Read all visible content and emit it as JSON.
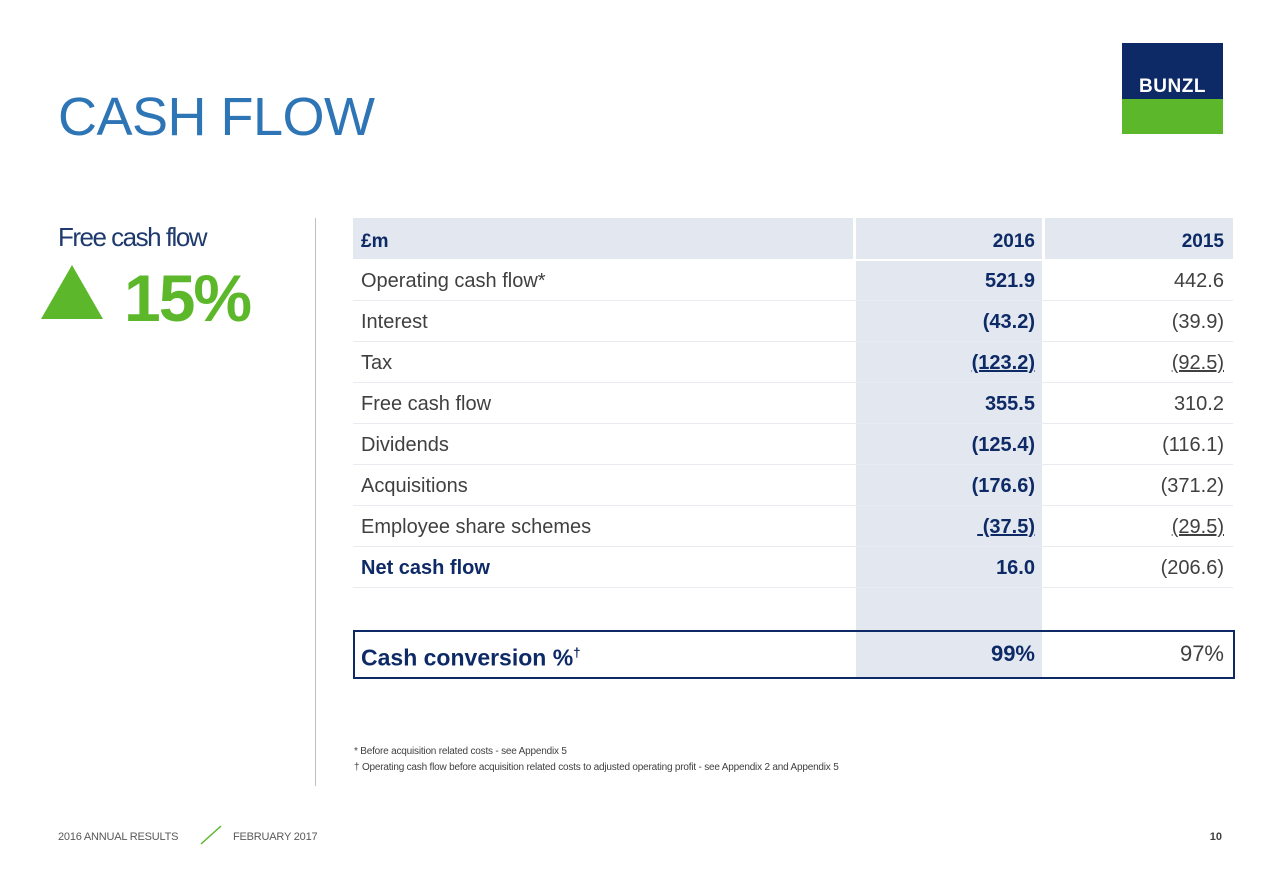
{
  "slide": {
    "title": "CASH FLOW",
    "logo_text": "BUNZL",
    "colors": {
      "accent_blue": "#2e75b6",
      "navy": "#0e2a66",
      "green": "#5cb82a",
      "shade": "#e3e8f0"
    }
  },
  "highlight": {
    "label": "Free cash flow",
    "icon": "up-triangle-icon",
    "value": "15%"
  },
  "table": {
    "header": {
      "label": "£m",
      "col_2016": "2016",
      "col_2015": "2015"
    },
    "rows": [
      {
        "label": "Operating cash flow*",
        "v2016": "521.9",
        "v2015": "442.6"
      },
      {
        "label": "Interest",
        "v2016": "(43.2)",
        "v2015": "(39.9)"
      },
      {
        "label": "Tax",
        "v2016": "(123.2)",
        "v2015": "(92.5)"
      },
      {
        "label": "Free cash flow",
        "v2016": "355.5",
        "v2015": "310.2"
      },
      {
        "label": "Dividends",
        "v2016": "(125.4)",
        "v2015": "(116.1)"
      },
      {
        "label": "Acquisitions",
        "v2016": "(176.6)",
        "v2015": "(371.2)"
      },
      {
        "label": "Employee share schemes",
        "v2016": " (37.5)",
        "v2015": "(29.5)"
      },
      {
        "label": "Net cash flow",
        "v2016": "16.0",
        "v2015": "(206.6)"
      }
    ],
    "conversion": {
      "label": "Cash conversion %",
      "marker": "†",
      "v2016": "99%",
      "v2015": "97%"
    }
  },
  "footnotes": {
    "star": "*  Before acquisition related costs - see Appendix 5",
    "dagger": "† Operating cash flow before acquisition related costs to adjusted operating profit - see Appendix 2 and Appendix  5"
  },
  "footer": {
    "report": "2016 ANNUAL RESULTS",
    "date": "FEBRUARY 2017",
    "page": "10"
  }
}
